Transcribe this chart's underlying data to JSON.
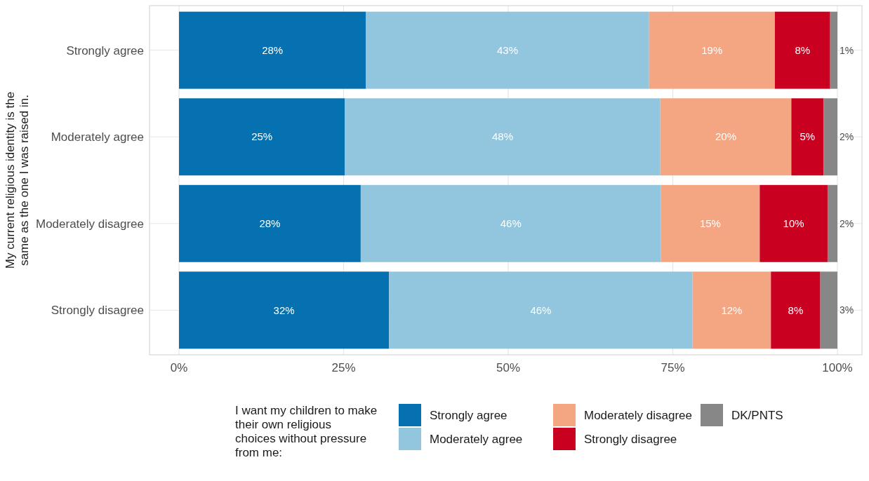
{
  "chart_data": {
    "type": "bar",
    "orientation": "horizontal",
    "stacked": true,
    "categories": [
      "Strongly agree",
      "Moderately agree",
      "Moderately disagree",
      "Strongly disagree"
    ],
    "ylabel": "My current religious identity is the same as the one I was raised in.",
    "legend_title": "I want my children to make their own religious choices without pressure from me:",
    "series": [
      {
        "name": "Strongly agree",
        "color": "#0571b0",
        "values": [
          28.4,
          25.2,
          27.6,
          31.9
        ],
        "value_labels": [
          "28%",
          "25%",
          "28%",
          "32%"
        ]
      },
      {
        "name": "Moderately agree",
        "color": "#92c5de",
        "values": [
          43.0,
          47.9,
          45.6,
          46.1
        ],
        "value_labels": [
          "43%",
          "48%",
          "46%",
          "46%"
        ]
      },
      {
        "name": "Moderately disagree",
        "color": "#f4a582",
        "values": [
          19.1,
          19.9,
          15.0,
          11.9
        ],
        "value_labels": [
          "19%",
          "20%",
          "15%",
          "12%"
        ]
      },
      {
        "name": "Strongly disagree",
        "color": "#ca0020",
        "values": [
          8.4,
          4.9,
          10.3,
          7.5
        ],
        "value_labels": [
          "8%",
          "5%",
          "10%",
          "8%"
        ]
      },
      {
        "name": "DK/PNTS",
        "color": "#878787",
        "values": [
          1.1,
          2.1,
          1.5,
          2.6
        ],
        "value_labels": [
          "1%",
          "2%",
          "2%",
          "3%"
        ]
      }
    ],
    "xlim": [
      0,
      100
    ],
    "xticks": [
      {
        "value": 0,
        "label": "0%"
      },
      {
        "value": 25,
        "label": "25%"
      },
      {
        "value": 50,
        "label": "50%"
      },
      {
        "value": 75,
        "label": "75%"
      },
      {
        "value": 100,
        "label": "100%"
      }
    ],
    "grid": true,
    "legend": "bottom"
  }
}
